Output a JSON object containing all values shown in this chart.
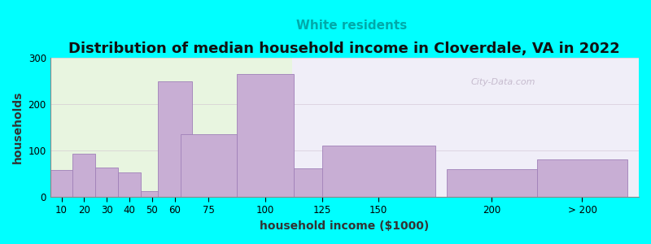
{
  "title": "Distribution of median household income in Cloverdale, VA in 2022",
  "subtitle": "White residents",
  "xlabel": "household income ($1000)",
  "ylabel": "households",
  "background_color": "#00FFFF",
  "plot_bg_color_left": "#e8f5e0",
  "plot_bg_color_right": "#f0eef8",
  "bar_color": "#c8aed4",
  "bar_edge_color": "#a080b8",
  "bar_positions": [
    10,
    20,
    30,
    40,
    50,
    60,
    75,
    100,
    125,
    150,
    200,
    240
  ],
  "bar_widths": [
    10,
    10,
    10,
    10,
    10,
    15,
    25,
    25,
    25,
    50,
    40,
    40
  ],
  "values": [
    58,
    93,
    63,
    52,
    12,
    248,
    135,
    265,
    62,
    110,
    60,
    80
  ],
  "xtick_positions": [
    10,
    20,
    30,
    40,
    50,
    60,
    75,
    100,
    125,
    150,
    200,
    240
  ],
  "xtick_labels": [
    "10",
    "20",
    "30",
    "40",
    "50",
    "60",
    "75",
    "100",
    "125",
    "150",
    "200",
    "> 200"
  ],
  "xlim": [
    5,
    265
  ],
  "ylim": [
    0,
    300
  ],
  "yticks": [
    0,
    100,
    200,
    300
  ],
  "title_fontsize": 13,
  "subtitle_fontsize": 11,
  "subtitle_color": "#00AAAA",
  "axis_label_fontsize": 10,
  "watermark": "City-Data.com",
  "bg_split_x": 112
}
